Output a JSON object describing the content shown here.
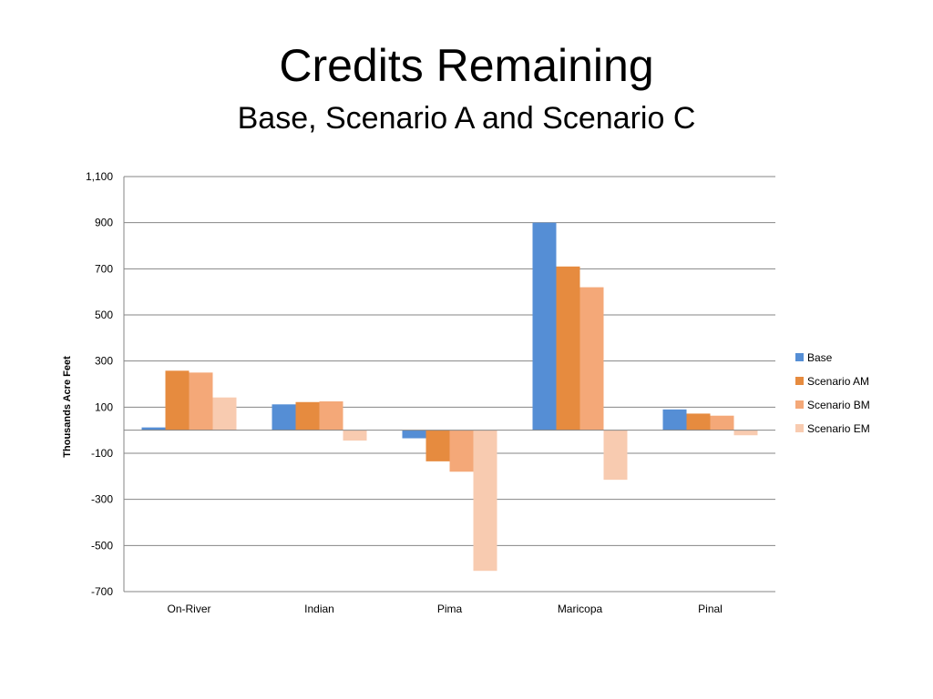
{
  "title": "Credits Remaining",
  "subtitle": "Base, Scenario A and Scenario C",
  "chart_data": {
    "type": "bar",
    "title": "Credits Remaining",
    "subtitle": "Base, Scenario A and Scenario C",
    "ylabel": "Thousands Acre Feet",
    "xlabel": "",
    "categories": [
      "On-River",
      "Indian",
      "Pima",
      "Maricopa",
      "Pinal"
    ],
    "ylim": [
      -700,
      1100
    ],
    "yticks": [
      -700,
      -500,
      -300,
      -100,
      100,
      300,
      500,
      700,
      900,
      1100
    ],
    "ytick_labels": [
      "-700",
      "-500",
      "-300",
      "-100",
      "100",
      "300",
      "500",
      "700",
      "900",
      "1,100"
    ],
    "grid": true,
    "legend_position": "right",
    "series": [
      {
        "name": "Base",
        "color": "#558ED5",
        "values": [
          12,
          112,
          -35,
          900,
          90
        ]
      },
      {
        "name": "Scenario AM",
        "color": "#E68B3F",
        "values": [
          258,
          122,
          -135,
          710,
          72
        ]
      },
      {
        "name": "Scenario BM",
        "color": "#F4A878",
        "values": [
          250,
          125,
          -180,
          620,
          63
        ]
      },
      {
        "name": "Scenario EM",
        "color": "#F8CBB0",
        "values": [
          142,
          -45,
          -610,
          -215,
          -22
        ]
      }
    ]
  }
}
